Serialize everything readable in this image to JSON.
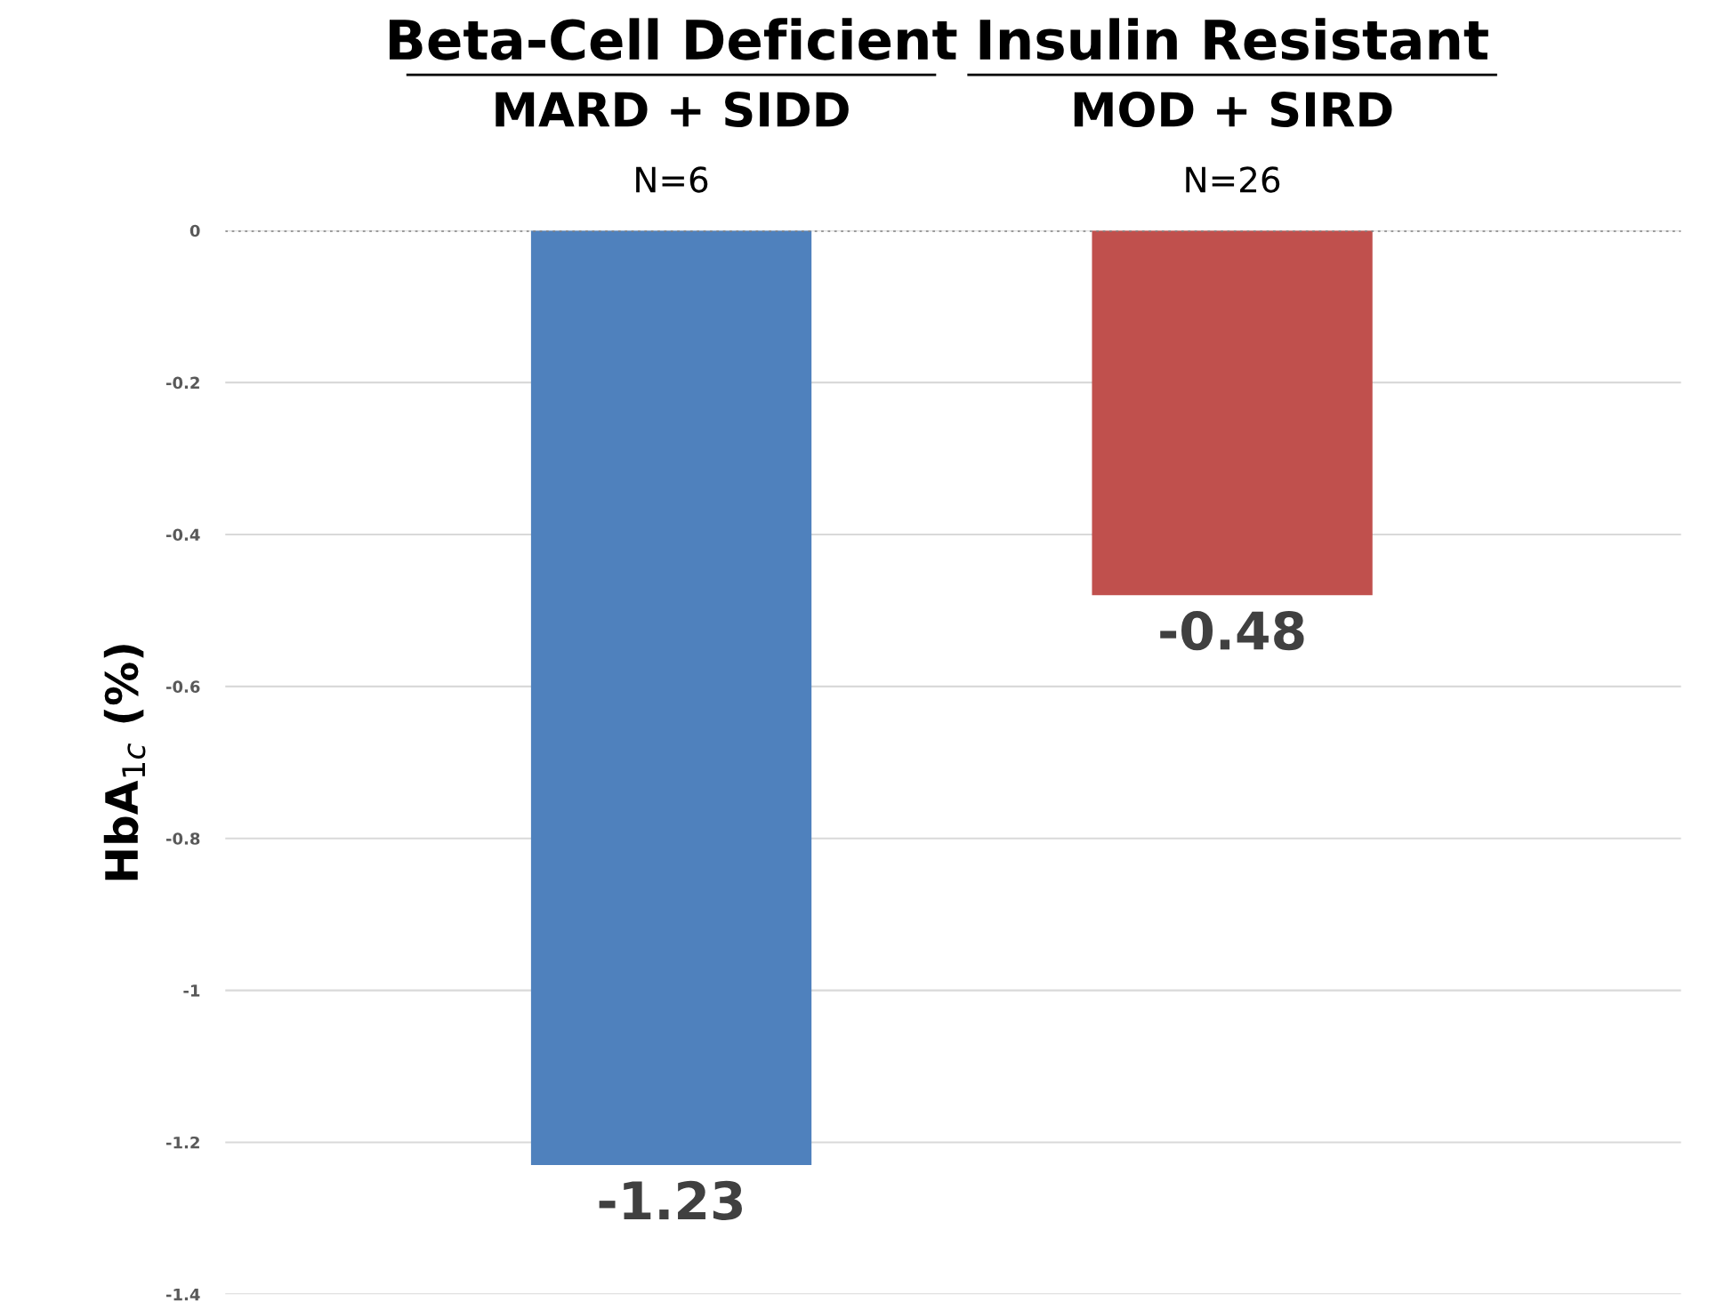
{
  "chart_data": {
    "type": "bar",
    "categories": [
      "Beta-Cell Deficient\nMARD + SIDD\nN=6",
      "Insulin Resistant\nMOD + SIRD\nN=26"
    ],
    "values": [
      -1.23,
      -0.48
    ],
    "colors": [
      "#4f81bd",
      "#c0504d"
    ],
    "ylabel": "HbA$_{1c}$ (%)",
    "ylim": [
      -1.4,
      0
    ],
    "yticks": [
      0,
      {
        "value": -0.2,
        "label": "-0.2"
      },
      {
        "value": -0.4,
        "label": "-0.4"
      },
      {
        "value": -0.6,
        "label": "-0.6"
      },
      {
        "value": -0.8,
        "label": "-0.8"
      },
      {
        "value": -1,
        "label": "-1"
      },
      {
        "value": -1.2,
        "label": "-1.2"
      },
      {
        "value": -1.4,
        "label": "-1.4"
      }
    ],
    "grid": "y",
    "ref_lines": [
      {
        "axis": "y",
        "value": 0,
        "color": "#808080",
        "line_style": "dotted"
      }
    ],
    "data_labels": true
  }
}
